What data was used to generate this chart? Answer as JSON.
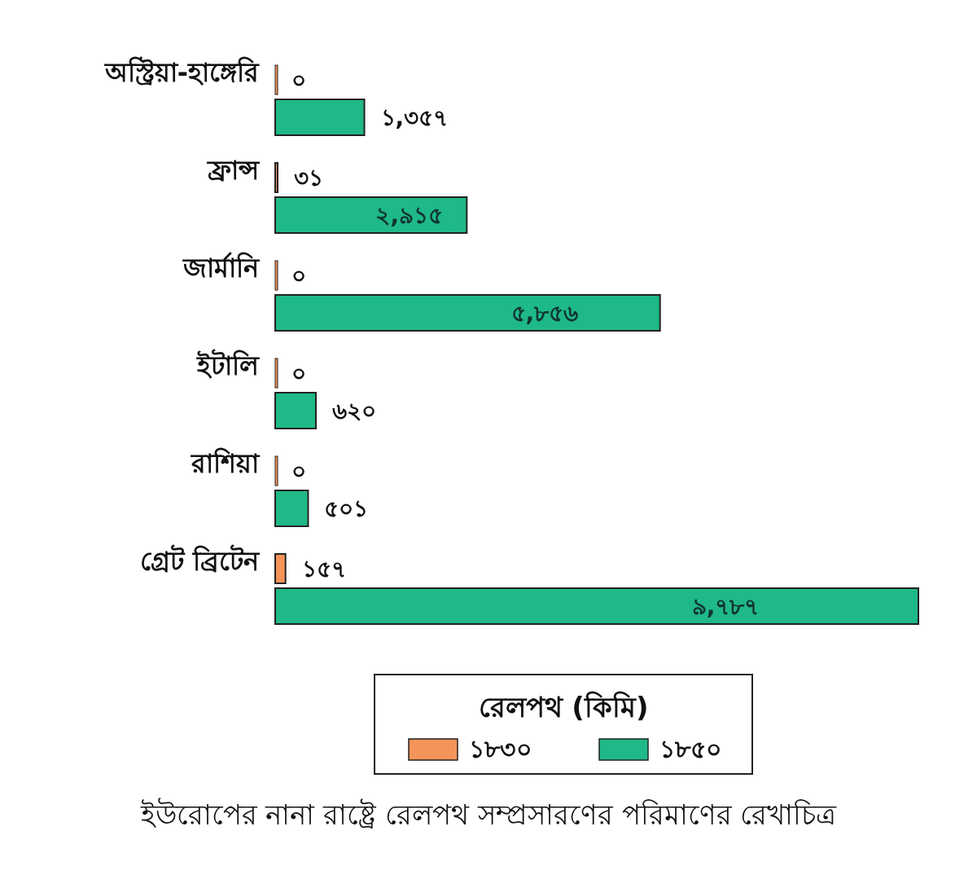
{
  "chart_data": {
    "type": "bar",
    "orientation": "horizontal",
    "categories": [
      "অস্ট্রিয়া-হাঙ্গেরি",
      "ফ্রান্স",
      "জার্মানি",
      "ইটালি",
      "রাশিয়া",
      "গ্রেট ব্রিটেন"
    ],
    "series": [
      {
        "name": "১৮৩০",
        "color": "#f4945a",
        "values": [
          0,
          31,
          0,
          0,
          0,
          157
        ],
        "value_labels": [
          "০",
          "৩১",
          "০",
          "০",
          "০",
          "১৫৭"
        ]
      },
      {
        "name": "১৮৫০",
        "color": "#1fb888",
        "values": [
          1357,
          2915,
          5856,
          620,
          501,
          9787
        ],
        "value_labels": [
          "১,৩৫৭",
          "২,৯১৫",
          "৫,৮৫৬",
          "৬২০",
          "৫০১",
          "৯,৭৮৭"
        ]
      }
    ],
    "legend": "bottom",
    "legend_title": "রেলপথ (কিমি)",
    "annotations": [
      "ইউরোপের নানা রাষ্ট্রে রেলপথ সম্প্রসারণের পরিমাণের রেখাচিত্র"
    ]
  }
}
